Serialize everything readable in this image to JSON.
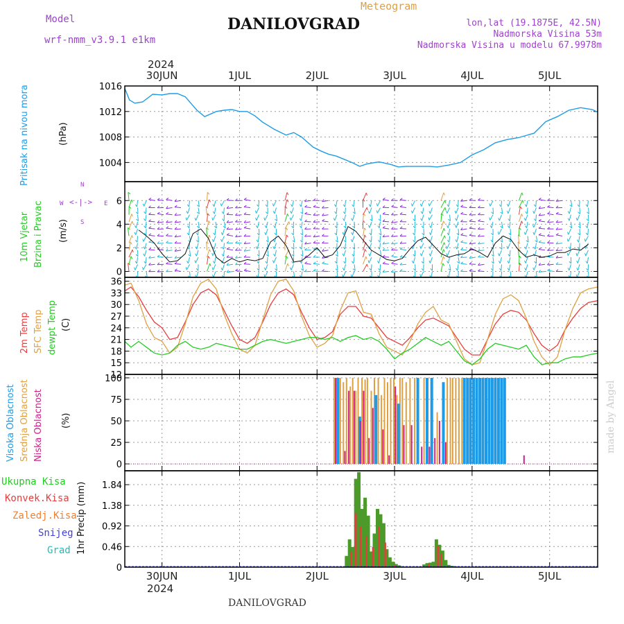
{
  "header": {
    "model_label": "Model",
    "model_name": "wrf-nmm_v3.9.1 e1km",
    "title": "DANILOVGRAD",
    "meteogram_label": "Meteogram",
    "lonlat": "lon,lat (19.1875E, 42.5N)",
    "altitude": "Nadmorska Visina 53m",
    "model_altitude": "Nadmorska Visina u modelu 67.9978m"
  },
  "footer": {
    "station": "DANILOVGRAD",
    "credit": "made by Angel"
  },
  "time_axis": {
    "year": "2024",
    "labels": [
      "30JUN",
      "1JUL",
      "2JUL",
      "3JUL",
      "4JUL",
      "5JUL"
    ],
    "range_days": [
      -0.48,
      5.62
    ]
  },
  "colors": {
    "pressure": "#1E9BE6",
    "temp2m": "#E83C3C",
    "sfc": "#E0A040",
    "dewpt": "#22CC22",
    "cloud_high": "#1E9BE6",
    "cloud_mid": "#E0A040",
    "cloud_low": "#CC2288",
    "rain_total": "#4C9A2A",
    "rain_conv": "#E83C3C",
    "rain_strat": "#F08030",
    "snow": "#4040E0",
    "hail": "#22BBBB",
    "purple_text": "#A040D0"
  },
  "panels": {
    "pressure": {
      "ylabel1": "Pritisak na nivou mora",
      "ylabel2": "(hPa)"
    },
    "wind": {
      "ylabel1": "10m Vjetar",
      "ylabel2": "Brzina i Pravac",
      "ylabel3": "(m/s)",
      "compass": {
        "n": "N",
        "w": "W",
        "e": "E",
        "s": "S"
      }
    },
    "temp": {
      "ylabel1": "2m Temp",
      "ylabel2": "SFC Temp",
      "ylabel3": "dewpt Temp",
      "ylabel4": "(C)"
    },
    "cloud": {
      "ylabel1": "Visoka Oblacnost",
      "ylabel2": "Srednja Oblacnost",
      "ylabel3": "Niska Oblacnost",
      "ylabel4": "(%)"
    },
    "precip": {
      "legend": [
        "Ukupna Kisa",
        "Konvek.Kisa",
        "Zaledj.Kisa",
        "Snijeg",
        "Grad"
      ],
      "ylabel": "1hr Precip (mm)"
    }
  },
  "chart_data": [
    {
      "type": "line",
      "name": "pressure",
      "ylim": [
        1001,
        1016
      ],
      "yticks": [
        "1004",
        "1008",
        "1012",
        "1016"
      ],
      "ytick_values": [
        1004,
        1008,
        1012,
        1016
      ],
      "series": [
        {
          "name": "Pritisak na nivou mora",
          "x": [
            -0.48,
            -0.42,
            -0.35,
            -0.25,
            -0.12,
            0,
            0.1,
            0.2,
            0.3,
            0.45,
            0.55,
            0.7,
            0.8,
            0.9,
            1.0,
            1.1,
            1.2,
            1.3,
            1.45,
            1.6,
            1.7,
            1.8,
            1.95,
            2.05,
            2.15,
            2.25,
            2.35,
            2.45,
            2.55,
            2.65,
            2.8,
            2.95,
            3.05,
            3.15,
            3.3,
            3.45,
            3.55,
            3.7,
            3.85,
            4.0,
            4.15,
            4.3,
            4.45,
            4.6,
            4.8,
            4.95,
            5.1,
            5.25,
            5.4,
            5.55,
            5.62
          ],
          "values": [
            1015.6,
            1013.8,
            1013.3,
            1013.5,
            1014.7,
            1014.6,
            1014.8,
            1014.8,
            1014.3,
            1012.2,
            1011.2,
            1012.0,
            1012.2,
            1012.3,
            1012.0,
            1012.0,
            1011.3,
            1010.3,
            1009.2,
            1008.3,
            1008.7,
            1008.0,
            1006.4,
            1005.8,
            1005.3,
            1005.0,
            1004.5,
            1004.0,
            1003.4,
            1003.8,
            1004.1,
            1003.7,
            1003.3,
            1003.4,
            1003.4,
            1003.4,
            1003.3,
            1003.6,
            1004.0,
            1005.2,
            1006.0,
            1007.1,
            1007.6,
            1007.9,
            1008.6,
            1010.4,
            1011.2,
            1012.2,
            1012.6,
            1012.3,
            1011.9
          ]
        }
      ]
    },
    {
      "type": "line",
      "name": "wind",
      "ylim": [
        -0.5,
        7.6
      ],
      "yticks": [
        "0",
        "2",
        "4",
        "6"
      ],
      "ytick_values": [
        0,
        2,
        4,
        6
      ],
      "series": [
        {
          "name": "wind speed (black)",
          "color": "#111111",
          "x": [
            -0.3,
            -0.2,
            -0.1,
            0,
            0.1,
            0.2,
            0.3,
            0.4,
            0.5,
            0.6,
            0.7,
            0.8,
            0.9,
            1.0,
            1.1,
            1.2,
            1.3,
            1.4,
            1.5,
            1.6,
            1.7,
            1.8,
            1.9,
            2.0,
            2.1,
            2.2,
            2.3,
            2.4,
            2.5,
            2.6,
            2.7,
            2.8,
            2.9,
            3.0,
            3.1,
            3.2,
            3.3,
            3.4,
            3.5,
            3.6,
            3.7,
            3.8,
            3.9,
            4.0,
            4.1,
            4.2,
            4.3,
            4.4,
            4.5,
            4.6,
            4.7,
            4.8,
            4.9,
            5.0,
            5.1,
            5.2,
            5.3,
            5.4,
            5.5
          ],
          "values": [
            3.5,
            3.0,
            2.4,
            1.5,
            0.8,
            0.9,
            1.5,
            3.2,
            3.6,
            2.8,
            1.2,
            0.7,
            1.1,
            0.8,
            1.0,
            0.9,
            1.1,
            2.5,
            3.0,
            2.2,
            0.8,
            0.9,
            1.4,
            2.0,
            1.2,
            1.4,
            2.2,
            3.8,
            3.4,
            2.6,
            1.8,
            1.4,
            1.0,
            0.9,
            1.1,
            1.9,
            2.6,
            2.9,
            2.2,
            1.5,
            1.2,
            1.4,
            1.5,
            1.9,
            1.6,
            1.2,
            2.4,
            3.0,
            2.7,
            1.8,
            1.2,
            1.4,
            1.2,
            1.3,
            1.6,
            1.6,
            1.9,
            1.8,
            2.3
          ]
        }
      ]
    },
    {
      "type": "line",
      "name": "temperature",
      "ylim": [
        12,
        37
      ],
      "yticks": [
        "12",
        "15",
        "18",
        "21",
        "24",
        "27",
        "30",
        "33",
        "36"
      ],
      "ytick_values": [
        12,
        15,
        18,
        21,
        24,
        27,
        30,
        33,
        36
      ],
      "series": [
        {
          "name": "2m Temp",
          "x": [
            -0.48,
            -0.4,
            -0.3,
            -0.2,
            -0.1,
            0,
            0.1,
            0.2,
            0.3,
            0.4,
            0.5,
            0.6,
            0.7,
            0.8,
            0.9,
            1.0,
            1.1,
            1.2,
            1.3,
            1.4,
            1.5,
            1.6,
            1.7,
            1.8,
            1.9,
            2.0,
            2.1,
            2.2,
            2.3,
            2.4,
            2.5,
            2.6,
            2.7,
            2.8,
            2.9,
            3.0,
            3.1,
            3.2,
            3.3,
            3.4,
            3.5,
            3.6,
            3.7,
            3.8,
            3.9,
            4.0,
            4.1,
            4.2,
            4.3,
            4.4,
            4.5,
            4.6,
            4.7,
            4.8,
            4.9,
            5.0,
            5.1,
            5.2,
            5.3,
            5.4,
            5.5,
            5.62
          ],
          "values": [
            33.5,
            34.5,
            32.0,
            28.5,
            25.5,
            24.0,
            21.0,
            21.5,
            25.5,
            30.0,
            33.0,
            34.0,
            32.5,
            28.5,
            24.5,
            21.0,
            20.0,
            21.5,
            25.5,
            30.0,
            33.0,
            34.0,
            32.5,
            28.0,
            24.0,
            21.0,
            21.5,
            23.0,
            27.5,
            29.5,
            29.5,
            27.0,
            26.5,
            24.0,
            21.5,
            20.5,
            19.5,
            21.5,
            24.0,
            26.0,
            26.5,
            25.5,
            24.5,
            21.5,
            18.5,
            17.0,
            17.0,
            21.0,
            25.0,
            27.5,
            28.5,
            28.0,
            26.0,
            22.5,
            19.5,
            18.0,
            19.5,
            23.5,
            26.5,
            29.0,
            30.5,
            31.0
          ]
        },
        {
          "name": "SFC Temp",
          "x": [
            -0.48,
            -0.4,
            -0.3,
            -0.2,
            -0.1,
            0,
            0.1,
            0.2,
            0.3,
            0.4,
            0.5,
            0.6,
            0.7,
            0.8,
            0.9,
            1.0,
            1.1,
            1.2,
            1.3,
            1.4,
            1.5,
            1.6,
            1.7,
            1.8,
            1.9,
            2.0,
            2.1,
            2.2,
            2.3,
            2.4,
            2.5,
            2.6,
            2.7,
            2.8,
            2.9,
            3.0,
            3.1,
            3.2,
            3.3,
            3.4,
            3.5,
            3.6,
            3.7,
            3.8,
            3.9,
            4.0,
            4.1,
            4.2,
            4.3,
            4.4,
            4.5,
            4.6,
            4.7,
            4.8,
            4.9,
            5.0,
            5.1,
            5.2,
            5.3,
            5.4,
            5.5,
            5.62
          ],
          "values": [
            35.0,
            35.5,
            31.0,
            25.0,
            21.5,
            20.5,
            17.5,
            19.0,
            25.0,
            32.0,
            35.5,
            36.5,
            34.0,
            27.5,
            22.5,
            18.5,
            17.5,
            19.5,
            26.0,
            32.5,
            36.0,
            36.5,
            33.5,
            27.0,
            22.0,
            19.0,
            20.0,
            22.0,
            28.5,
            33.0,
            33.5,
            28.0,
            27.5,
            22.5,
            19.0,
            18.0,
            17.0,
            20.5,
            25.0,
            28.0,
            29.5,
            26.0,
            25.0,
            20.5,
            16.0,
            14.5,
            15.0,
            21.0,
            27.5,
            31.5,
            32.5,
            31.0,
            26.5,
            20.5,
            16.5,
            14.5,
            16.5,
            23.5,
            29.0,
            33.0,
            34.0,
            34.5
          ]
        },
        {
          "name": "dewpt Temp",
          "x": [
            -0.48,
            -0.4,
            -0.3,
            -0.2,
            -0.1,
            0,
            0.1,
            0.2,
            0.3,
            0.4,
            0.5,
            0.6,
            0.7,
            0.8,
            0.9,
            1.0,
            1.1,
            1.2,
            1.3,
            1.4,
            1.5,
            1.6,
            1.7,
            1.8,
            1.9,
            2.0,
            2.1,
            2.2,
            2.3,
            2.4,
            2.5,
            2.6,
            2.7,
            2.8,
            2.9,
            3.0,
            3.1,
            3.2,
            3.3,
            3.4,
            3.5,
            3.6,
            3.7,
            3.8,
            3.9,
            4.0,
            4.1,
            4.2,
            4.3,
            4.4,
            4.5,
            4.6,
            4.7,
            4.8,
            4.9,
            5.0,
            5.1,
            5.2,
            5.3,
            5.4,
            5.5,
            5.62
          ],
          "values": [
            20.5,
            19.0,
            20.5,
            19.0,
            17.5,
            17.0,
            17.5,
            19.5,
            20.5,
            19.0,
            18.5,
            19.0,
            20.0,
            19.5,
            19.0,
            18.5,
            18.5,
            19.5,
            20.5,
            21.0,
            20.5,
            20.0,
            20.5,
            21.0,
            21.5,
            21.5,
            21.0,
            21.5,
            20.5,
            21.5,
            22.0,
            21.0,
            21.5,
            20.5,
            18.5,
            16.0,
            17.5,
            18.5,
            20.0,
            21.5,
            20.5,
            19.5,
            20.5,
            18.0,
            15.5,
            14.5,
            16.0,
            18.5,
            20.0,
            19.5,
            19.0,
            18.5,
            19.5,
            16.5,
            14.5,
            15.0,
            15.0,
            16.0,
            16.5,
            16.5,
            17.0,
            17.5
          ]
        }
      ]
    },
    {
      "type": "bar",
      "name": "cloud cover",
      "ylim": [
        -8,
        104
      ],
      "yticks": [
        "0",
        "25",
        "50",
        "75",
        "100"
      ],
      "ytick_values": [
        0,
        25,
        50,
        75,
        100
      ],
      "series": [
        {
          "name": "Visoka Oblacnost",
          "x": [
            2.27,
            2.55,
            2.76,
            3.05,
            3.3,
            3.42,
            3.48,
            3.63,
            3.9,
            3.94,
            3.98,
            4.02,
            4.06,
            4.1,
            4.14,
            4.18,
            4.22,
            4.26,
            4.3,
            4.34,
            4.38,
            4.42
          ],
          "values": [
            100,
            55,
            80,
            70,
            100,
            100,
            100,
            95,
            100,
            100,
            100,
            100,
            100,
            100,
            100,
            100,
            100,
            100,
            100,
            100,
            100,
            100
          ]
        },
        {
          "name": "Srednja Oblacnost",
          "x": [
            2.22,
            2.25,
            2.3,
            2.34,
            2.38,
            2.43,
            2.46,
            2.5,
            2.53,
            2.58,
            2.62,
            2.65,
            2.7,
            2.74,
            2.79,
            2.83,
            2.87,
            2.91,
            2.95,
            2.99,
            3.03,
            3.07,
            3.1,
            3.15,
            3.2,
            3.26,
            3.38,
            3.55,
            3.68,
            3.72,
            3.75,
            3.79,
            3.83,
            3.87
          ],
          "values": [
            100,
            100,
            100,
            95,
            100,
            90,
            100,
            85,
            100,
            100,
            98,
            100,
            85,
            100,
            100,
            80,
            100,
            95,
            100,
            100,
            80,
            100,
            100,
            95,
            100,
            100,
            100,
            60,
            100,
            100,
            100,
            100,
            100,
            100
          ]
        },
        {
          "name": "Niska Oblacnost",
          "x": [
            2.24,
            2.36,
            2.41,
            2.48,
            2.56,
            2.6,
            2.67,
            2.72,
            2.85,
            2.93,
            3.01,
            3.12,
            3.22,
            3.35,
            3.45,
            3.52,
            3.58,
            3.66,
            4.67
          ],
          "values": [
            100,
            15,
            85,
            85,
            50,
            85,
            30,
            65,
            40,
            10,
            90,
            45,
            45,
            20,
            20,
            30,
            50,
            25,
            10
          ]
        }
      ]
    },
    {
      "type": "bar",
      "name": "precipitation",
      "ylim": [
        0,
        2.15
      ],
      "yticks": [
        "0",
        "0.46",
        "0.92",
        "1.38",
        "1.84"
      ],
      "ytick_values": [
        0,
        0.46,
        0.92,
        1.38,
        1.84
      ],
      "series": [
        {
          "name": "Ukupna Kisa",
          "x": [
            2.38,
            2.42,
            2.46,
            2.5,
            2.54,
            2.58,
            2.62,
            2.66,
            2.7,
            2.74,
            2.78,
            2.82,
            2.86,
            2.9,
            2.94,
            2.98,
            3.02,
            3.06,
            3.1,
            3.38,
            3.42,
            3.46,
            3.5,
            3.54,
            3.58,
            3.62,
            3.66,
            3.7,
            3.74,
            3.78
          ],
          "values": [
            0.25,
            0.62,
            0.45,
            1.97,
            2.12,
            1.3,
            1.55,
            1.15,
            0.35,
            0.75,
            1.3,
            1.18,
            0.98,
            0.4,
            0.22,
            0.12,
            0.07,
            0.04,
            0.02,
            0.06,
            0.09,
            0.1,
            0.12,
            0.62,
            0.5,
            0.37,
            0.16,
            0.05,
            0.03,
            0.02
          ]
        },
        {
          "name": "Konvek.Kisa",
          "x": [
            2.44,
            2.5,
            2.56,
            2.64,
            2.72,
            2.8,
            2.88,
            3.0,
            3.44,
            3.56,
            3.6
          ],
          "values": [
            0.35,
            1.2,
            0.9,
            0.7,
            0.45,
            0.9,
            0.55,
            0.05,
            0.08,
            0.48,
            0.3
          ]
        }
      ]
    }
  ]
}
